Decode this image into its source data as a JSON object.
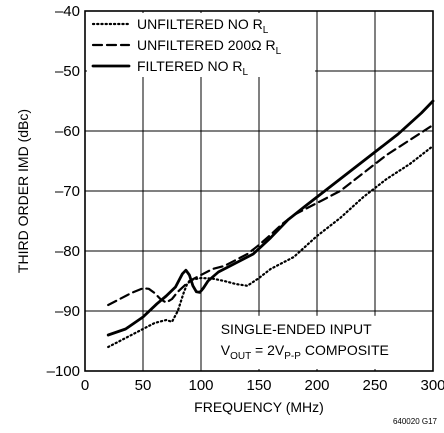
{
  "chart_data": {
    "type": "line",
    "xlabel": "FREQUENCY (MHz)",
    "ylabel": "THIRD ORDER IMD (dBc)",
    "xlim": [
      0,
      300
    ],
    "ylim": [
      -100,
      -40
    ],
    "xticks": [
      0,
      50,
      100,
      150,
      200,
      250,
      300
    ],
    "yticks": [
      -100,
      -90,
      -80,
      -70,
      -60,
      -50,
      -40
    ],
    "grid": true,
    "legend_position": "top-left",
    "figure_id": "640020 G17",
    "annotation": {
      "line1": "SINGLE-ENDED INPUT",
      "line2_prefix": "V",
      "line2_sub1": "OUT",
      "line2_mid": " = 2V",
      "line2_sub2": "P-P",
      "line2_suffix": " COMPOSITE"
    },
    "series": [
      {
        "name_main": "UNFILTERED NO R",
        "name_sub": "L",
        "style": "dotted",
        "x": [
          20,
          40,
          60,
          70,
          75,
          80,
          85,
          88,
          92,
          100,
          110,
          120,
          130,
          140,
          150,
          160,
          170,
          180,
          200,
          220,
          240,
          260,
          280,
          300
        ],
        "y": [
          -96,
          -94,
          -92,
          -91.5,
          -91.8,
          -90,
          -87,
          -85.5,
          -84.8,
          -84.5,
          -84.6,
          -85,
          -85.5,
          -85.8,
          -84.5,
          -83,
          -82,
          -81,
          -77.5,
          -74.5,
          -71,
          -68,
          -65.5,
          -62.5
        ]
      },
      {
        "name_main": "UNFILTERED 200Ω R",
        "name_sub": "L",
        "style": "dashed",
        "x": [
          20,
          30,
          40,
          50,
          55,
          60,
          65,
          70,
          75,
          80,
          90,
          100,
          110,
          120,
          130,
          140,
          150,
          160,
          170,
          180,
          200,
          220,
          240,
          260,
          280,
          300
        ],
        "y": [
          -89,
          -88,
          -87,
          -86.2,
          -86.3,
          -87,
          -88,
          -88.6,
          -88,
          -86.8,
          -85,
          -84,
          -83,
          -82.5,
          -81.5,
          -80.5,
          -79,
          -77.3,
          -75.5,
          -74,
          -72,
          -70,
          -67,
          -64,
          -61.5,
          -59
        ]
      },
      {
        "name_main": "FILTERED NO R",
        "name_sub": "L",
        "style": "solid",
        "x": [
          20,
          35,
          50,
          62,
          70,
          78,
          84,
          87,
          90,
          93,
          96,
          99,
          102,
          106,
          115,
          130,
          145,
          160,
          175,
          190,
          210,
          230,
          250,
          270,
          290,
          300
        ],
        "y": [
          -94,
          -93,
          -91,
          -88.8,
          -87.5,
          -86,
          -83.8,
          -83.2,
          -84,
          -85.8,
          -86.8,
          -86.9,
          -86.2,
          -85,
          -83.5,
          -82,
          -80.5,
          -77.8,
          -74.8,
          -72.5,
          -69.5,
          -66.5,
          -63.5,
          -60.5,
          -57,
          -55
        ]
      }
    ]
  }
}
